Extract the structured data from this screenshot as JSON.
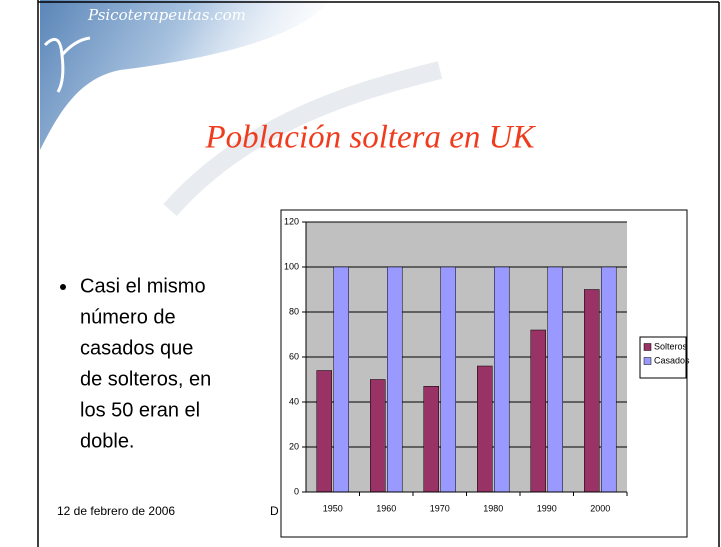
{
  "slide": {
    "logo": "Psicoterapeutas.com",
    "title": "Población soltera en UK",
    "bullet_lines": [
      "Casi el mismo",
      "número de",
      "casados que",
      "de solteros, en",
      "los 50 eran el",
      "doble."
    ],
    "footer_date": "12 de febrero de 2006",
    "footer_text": "D"
  },
  "chart_data": {
    "type": "bar",
    "categories": [
      "1950",
      "1960",
      "1970",
      "1980",
      "1990",
      "2000"
    ],
    "series": [
      {
        "name": "Solteros",
        "color": "#993366",
        "values": [
          54,
          50,
          47,
          56,
          72,
          90
        ]
      },
      {
        "name": "Casados",
        "color": "#9999ff",
        "values": [
          100,
          100,
          100,
          100,
          100,
          100
        ]
      }
    ],
    "ylim": [
      0,
      120
    ],
    "yticks": [
      0,
      20,
      40,
      60,
      80,
      100,
      120
    ],
    "grid": true,
    "legend": "right"
  }
}
